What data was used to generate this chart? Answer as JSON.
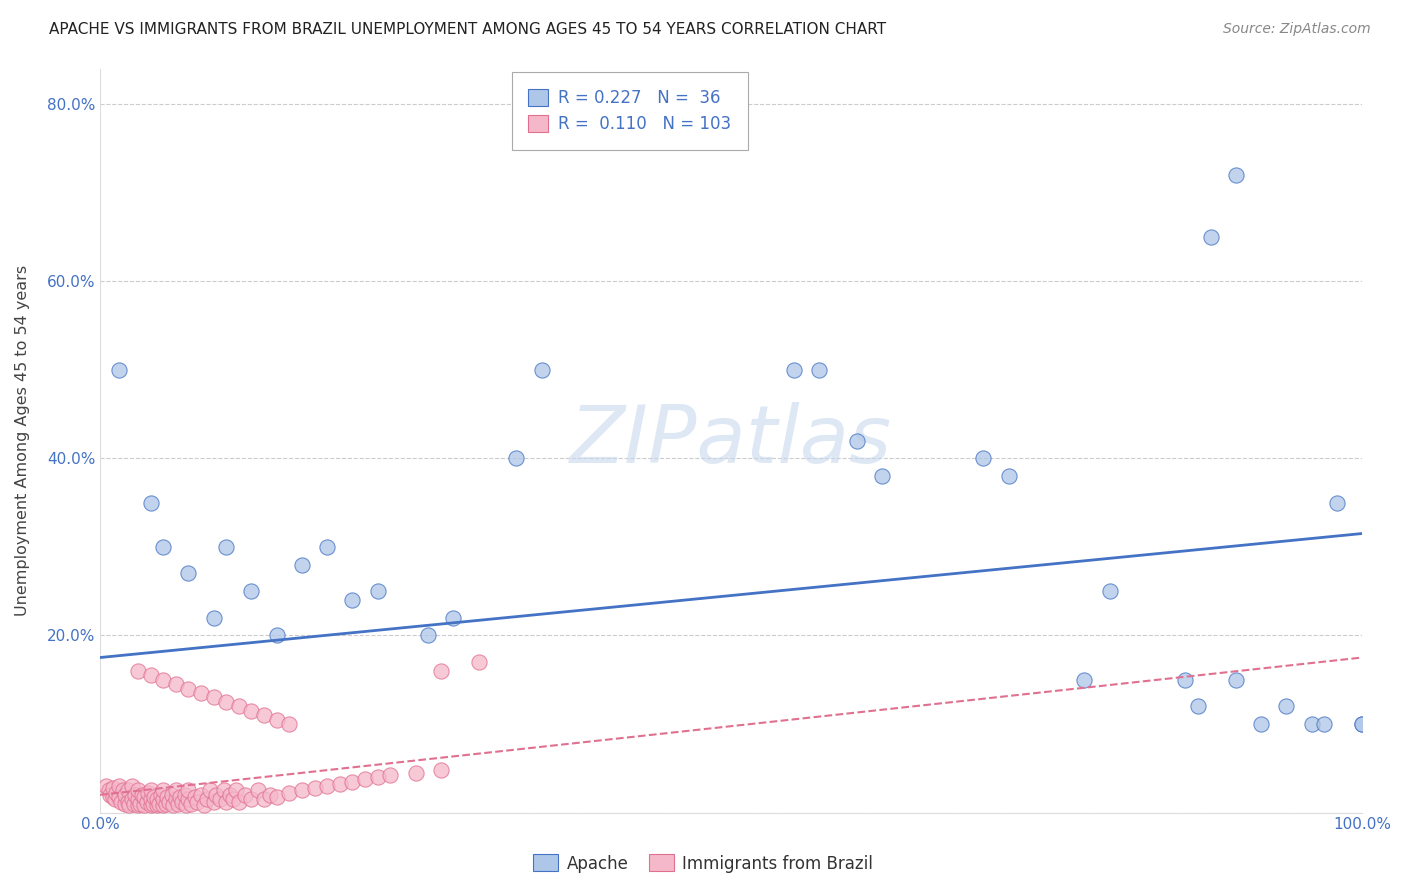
{
  "title": "APACHE VS IMMIGRANTS FROM BRAZIL UNEMPLOYMENT AMONG AGES 45 TO 54 YEARS CORRELATION CHART",
  "source": "Source: ZipAtlas.com",
  "ylabel": "Unemployment Among Ages 45 to 54 years",
  "xlabel": "",
  "xlim": [
    0,
    1.0
  ],
  "ylim": [
    0,
    0.84
  ],
  "xtick_vals": [
    0.0,
    0.2,
    0.4,
    0.6,
    0.8,
    1.0
  ],
  "xtick_labels": [
    "0.0%",
    "",
    "",
    "",
    "",
    "100.0%"
  ],
  "ytick_vals": [
    0.0,
    0.2,
    0.4,
    0.6,
    0.8
  ],
  "ytick_labels": [
    "",
    "20.0%",
    "40.0%",
    "60.0%",
    "80.0%"
  ],
  "legend_apache_R": "0.227",
  "legend_apache_N": "36",
  "legend_brazil_R": "0.110",
  "legend_brazil_N": "103",
  "apache_face_color": "#aec6e8",
  "apache_edge_color": "#4472C4",
  "brazil_face_color": "#f5b8ca",
  "brazil_edge_color": "#e07090",
  "apache_line_color": "#4472C4",
  "brazil_line_color": "#e07090",
  "tick_color": "#4472C4",
  "background_color": "#ffffff",
  "apache_trendline": [
    0.175,
    0.315
  ],
  "brazil_trendline": [
    0.02,
    0.175
  ],
  "apache_x": [
    0.015,
    0.04,
    0.05,
    0.07,
    0.09,
    0.1,
    0.12,
    0.14,
    0.16,
    0.18,
    0.2,
    0.22,
    0.26,
    0.28,
    0.33,
    0.35,
    0.55,
    0.57,
    0.7,
    0.72,
    0.78,
    0.8,
    0.86,
    0.87,
    0.9,
    0.92,
    0.94,
    0.96,
    0.97,
    0.98,
    1.0,
    1.0,
    0.6,
    0.62,
    0.88,
    0.9
  ],
  "apache_y": [
    0.5,
    0.35,
    0.3,
    0.27,
    0.22,
    0.3,
    0.25,
    0.2,
    0.28,
    0.3,
    0.24,
    0.25,
    0.2,
    0.22,
    0.4,
    0.5,
    0.5,
    0.5,
    0.4,
    0.38,
    0.15,
    0.25,
    0.15,
    0.12,
    0.15,
    0.1,
    0.12,
    0.1,
    0.1,
    0.35,
    0.1,
    0.1,
    0.42,
    0.38,
    0.65,
    0.72
  ],
  "brazil_x": [
    0.005,
    0.007,
    0.008,
    0.01,
    0.01,
    0.012,
    0.013,
    0.015,
    0.015,
    0.017,
    0.018,
    0.02,
    0.02,
    0.022,
    0.022,
    0.023,
    0.025,
    0.025,
    0.027,
    0.028,
    0.03,
    0.03,
    0.03,
    0.032,
    0.033,
    0.035,
    0.035,
    0.037,
    0.038,
    0.04,
    0.04,
    0.04,
    0.042,
    0.043,
    0.045,
    0.045,
    0.047,
    0.048,
    0.05,
    0.05,
    0.05,
    0.052,
    0.053,
    0.055,
    0.057,
    0.058,
    0.06,
    0.06,
    0.062,
    0.063,
    0.065,
    0.067,
    0.068,
    0.07,
    0.07,
    0.072,
    0.075,
    0.077,
    0.08,
    0.082,
    0.085,
    0.087,
    0.09,
    0.092,
    0.095,
    0.098,
    0.1,
    0.103,
    0.105,
    0.108,
    0.11,
    0.115,
    0.12,
    0.125,
    0.13,
    0.135,
    0.14,
    0.15,
    0.16,
    0.17,
    0.18,
    0.19,
    0.2,
    0.21,
    0.22,
    0.23,
    0.25,
    0.27,
    0.03,
    0.04,
    0.05,
    0.06,
    0.07,
    0.08,
    0.09,
    0.1,
    0.11,
    0.12,
    0.13,
    0.14,
    0.15,
    0.27,
    0.3
  ],
  "brazil_y": [
    0.03,
    0.025,
    0.02,
    0.018,
    0.028,
    0.015,
    0.022,
    0.018,
    0.03,
    0.012,
    0.025,
    0.01,
    0.02,
    0.012,
    0.025,
    0.008,
    0.015,
    0.03,
    0.01,
    0.02,
    0.008,
    0.015,
    0.025,
    0.01,
    0.02,
    0.008,
    0.018,
    0.012,
    0.022,
    0.008,
    0.015,
    0.025,
    0.01,
    0.018,
    0.008,
    0.015,
    0.01,
    0.02,
    0.008,
    0.015,
    0.025,
    0.01,
    0.018,
    0.012,
    0.02,
    0.008,
    0.015,
    0.025,
    0.01,
    0.018,
    0.012,
    0.02,
    0.008,
    0.015,
    0.025,
    0.01,
    0.018,
    0.012,
    0.02,
    0.008,
    0.015,
    0.025,
    0.012,
    0.02,
    0.015,
    0.025,
    0.012,
    0.02,
    0.015,
    0.025,
    0.012,
    0.02,
    0.015,
    0.025,
    0.015,
    0.02,
    0.018,
    0.022,
    0.025,
    0.028,
    0.03,
    0.032,
    0.035,
    0.038,
    0.04,
    0.042,
    0.045,
    0.048,
    0.16,
    0.155,
    0.15,
    0.145,
    0.14,
    0.135,
    0.13,
    0.125,
    0.12,
    0.115,
    0.11,
    0.105,
    0.1,
    0.16,
    0.17
  ]
}
